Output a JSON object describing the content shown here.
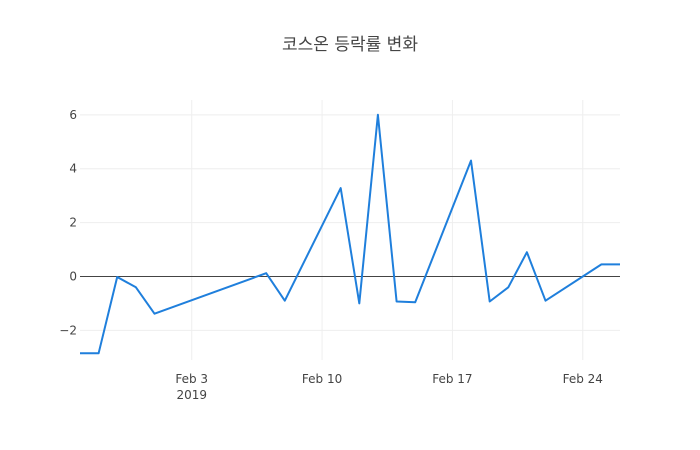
{
  "chart_data": {
    "type": "line",
    "title": "코스온 등락률 변화",
    "xlabel": "",
    "ylabel": "",
    "x": [
      "2019-01-28",
      "2019-01-29",
      "2019-01-30",
      "2019-01-31",
      "2019-02-01",
      "2019-02-07",
      "2019-02-08",
      "2019-02-11",
      "2019-02-12",
      "2019-02-13",
      "2019-02-14",
      "2019-02-15",
      "2019-02-18",
      "2019-02-19",
      "2019-02-20",
      "2019-02-21",
      "2019-02-22",
      "2019-02-25",
      "2019-02-26",
      "2019-02-27"
    ],
    "series": [
      {
        "values": [
          -2.85,
          -2.85,
          -0.02,
          -0.4,
          -1.38,
          0.12,
          -0.9,
          3.28,
          -1.0,
          6.0,
          -0.93,
          -0.96,
          4.3,
          -0.93,
          -0.4,
          0.9,
          -0.9,
          0.45,
          0.45,
          0.45
        ],
        "color": "#1f7fdc"
      }
    ],
    "xlim": [
      "2019-01-28",
      "2019-02-26"
    ],
    "ylim": [
      -3.1,
      6.55
    ],
    "x_ticks": [
      {
        "date": "2019-02-03",
        "label": "Feb 3",
        "sublabel": "2019"
      },
      {
        "date": "2019-02-10",
        "label": "Feb 10",
        "sublabel": ""
      },
      {
        "date": "2019-02-17",
        "label": "Feb 17",
        "sublabel": ""
      },
      {
        "date": "2019-02-24",
        "label": "Feb 24",
        "sublabel": ""
      }
    ],
    "y_ticks": [
      {
        "value": -2,
        "label": "−2"
      },
      {
        "value": 0,
        "label": "0"
      },
      {
        "value": 2,
        "label": "2"
      },
      {
        "value": 4,
        "label": "4"
      },
      {
        "value": 6,
        "label": "6"
      }
    ],
    "grid": true,
    "legend": "none"
  }
}
